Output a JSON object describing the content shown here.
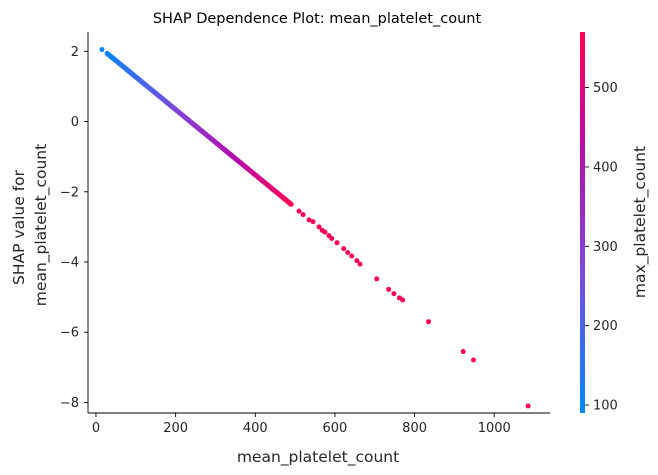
{
  "chart_data": {
    "type": "scatter",
    "title": "SHAP Dependence Plot: mean_platelet_count",
    "xlabel": "mean_platelet_count",
    "ylabel_lines": [
      "SHAP value for",
      "mean_platelet_count"
    ],
    "colorbar_label": "max_platelet_count",
    "xlim": [
      -20,
      1140
    ],
    "ylim": [
      -8.3,
      2.55
    ],
    "x_ticks": [
      0,
      200,
      400,
      600,
      800,
      1000
    ],
    "y_ticks": [
      2,
      0,
      -2,
      -4,
      -6,
      -8
    ],
    "colorbar_range": [
      90,
      570
    ],
    "colorbar_ticks": [
      100,
      200,
      300,
      400,
      500
    ],
    "colormap": [
      "#008AFB",
      "#7E48D9",
      "#B60CAB",
      "#FF0051"
    ],
    "trend": {
      "slope": -0.0093,
      "intercept": 2.2
    },
    "dense_range": [
      28,
      490
    ],
    "dense_step": 1.5,
    "points": [
      [
        15,
        2.05,
        95
      ],
      [
        510,
        -2.55,
        560
      ],
      [
        520,
        -2.65,
        560
      ],
      [
        535,
        -2.8,
        565
      ],
      [
        545,
        -2.85,
        565
      ],
      [
        560,
        -3.0,
        565
      ],
      [
        568,
        -3.1,
        565
      ],
      [
        575,
        -3.15,
        565
      ],
      [
        585,
        -3.25,
        565
      ],
      [
        592,
        -3.33,
        565
      ],
      [
        605,
        -3.45,
        565
      ],
      [
        622,
        -3.62,
        565
      ],
      [
        632,
        -3.73,
        565
      ],
      [
        642,
        -3.83,
        565
      ],
      [
        655,
        -3.96,
        565
      ],
      [
        663,
        -4.06,
        565
      ],
      [
        705,
        -4.48,
        565
      ],
      [
        735,
        -4.78,
        565
      ],
      [
        748,
        -4.9,
        565
      ],
      [
        762,
        -5.02,
        565
      ],
      [
        770,
        -5.08,
        565
      ],
      [
        835,
        -5.7,
        565
      ],
      [
        922,
        -6.55,
        565
      ],
      [
        948,
        -6.79,
        565
      ],
      [
        1085,
        -8.1,
        565
      ]
    ]
  }
}
